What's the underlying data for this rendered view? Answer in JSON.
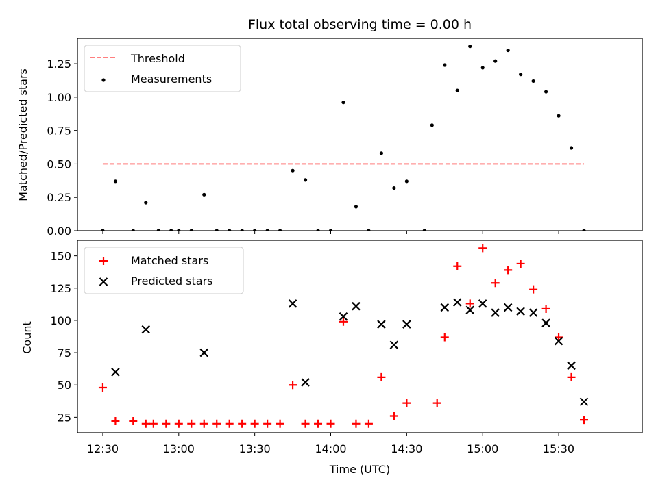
{
  "title": "Flux total observing time = 0.00 h",
  "chart_data": [
    {
      "type": "scatter",
      "ylabel": "Matched/Predicted stars",
      "xlim": [
        "12:20",
        "16:03"
      ],
      "ylim": [
        0,
        1.44
      ],
      "yticks": [
        "0.00",
        "0.25",
        "0.50",
        "0.75",
        "1.00",
        "1.25"
      ],
      "legend_position": "upper-left",
      "grid": false,
      "colors": {
        "measurements": "#000000",
        "threshold": "#ff7f7f"
      },
      "series": [
        {
          "name": "Threshold",
          "kind": "dashed-line",
          "x": [
            "12:30",
            "15:40"
          ],
          "y": [
            0.5,
            0.5
          ]
        },
        {
          "name": "Measurements",
          "kind": "points",
          "x": [
            "12:30",
            "12:35",
            "12:42",
            "12:47",
            "12:52",
            "12:57",
            "13:00",
            "13:05",
            "13:10",
            "13:15",
            "13:20",
            "13:25",
            "13:30",
            "13:35",
            "13:40",
            "13:45",
            "13:50",
            "13:55",
            "14:00",
            "14:05",
            "14:10",
            "14:15",
            "14:20",
            "14:25",
            "14:30",
            "14:37",
            "14:40",
            "14:45",
            "14:50",
            "14:55",
            "15:00",
            "15:05",
            "15:10",
            "15:15",
            "15:20",
            "15:25",
            "15:30",
            "15:35",
            "15:40"
          ],
          "y": [
            0,
            0.37,
            0,
            0.21,
            0,
            0,
            0,
            0,
            0.27,
            0,
            0,
            0,
            0,
            0,
            0,
            0.45,
            0.38,
            0,
            0,
            0.96,
            0.18,
            0,
            0.58,
            0.32,
            0.37,
            0,
            0.79,
            1.24,
            1.05,
            1.38,
            1.22,
            1.27,
            1.35,
            1.17,
            1.12,
            1.04,
            0.86,
            0.62,
            0
          ]
        }
      ]
    },
    {
      "type": "scatter",
      "xlabel": "Time (UTC)",
      "ylabel": "Count",
      "xlim": [
        "12:20",
        "16:03"
      ],
      "ylim": [
        13,
        162
      ],
      "xticks": [
        "12:30",
        "13:00",
        "13:30",
        "14:00",
        "14:30",
        "15:00",
        "15:30"
      ],
      "yticks": [
        "25",
        "50",
        "75",
        "100",
        "125",
        "150"
      ],
      "legend_position": "upper-left",
      "grid": false,
      "colors": {
        "matched": "#ff0000",
        "predicted": "#000000"
      },
      "series": [
        {
          "name": "Matched stars",
          "marker": "plus",
          "x": [
            "12:30",
            "12:35",
            "12:42",
            "12:47",
            "12:50",
            "12:55",
            "13:00",
            "13:05",
            "13:10",
            "13:15",
            "13:20",
            "13:25",
            "13:30",
            "13:35",
            "13:40",
            "13:45",
            "13:50",
            "13:55",
            "14:00",
            "14:05",
            "14:10",
            "14:15",
            "14:20",
            "14:25",
            "14:30",
            "14:42",
            "14:45",
            "14:50",
            "14:55",
            "15:00",
            "15:05",
            "15:10",
            "15:15",
            "15:20",
            "15:25",
            "15:30",
            "15:35",
            "15:40"
          ],
          "y": [
            48,
            22,
            22,
            20,
            20,
            20,
            20,
            20,
            20,
            20,
            20,
            20,
            20,
            20,
            20,
            50,
            20,
            20,
            20,
            99,
            20,
            20,
            56,
            26,
            36,
            36,
            87,
            142,
            113,
            156,
            129,
            139,
            144,
            124,
            109,
            87,
            56,
            23
          ]
        },
        {
          "name": "Predicted stars",
          "marker": "x",
          "x": [
            "12:35",
            "12:47",
            "13:10",
            "13:45",
            "13:50",
            "14:05",
            "14:10",
            "14:20",
            "14:25",
            "14:30",
            "14:45",
            "14:50",
            "14:55",
            "15:00",
            "15:05",
            "15:10",
            "15:15",
            "15:20",
            "15:25",
            "15:30",
            "15:35",
            "15:40"
          ],
          "y": [
            60,
            93,
            75,
            113,
            52,
            103,
            111,
            97,
            81,
            97,
            110,
            114,
            108,
            113,
            106,
            110,
            107,
            106,
            98,
            84,
            65,
            37
          ]
        }
      ]
    }
  ]
}
